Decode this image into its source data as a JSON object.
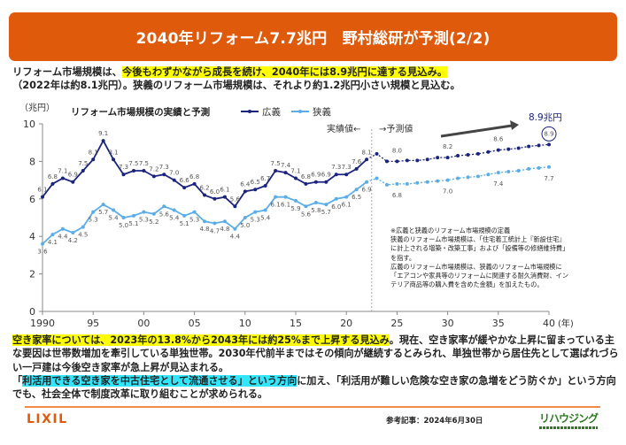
{
  "header": {
    "title": "2040年リフォーム7.7兆円　野村総研が予測(2/2)"
  },
  "lead": {
    "line1_pre": "リフォーム市場規模は、",
    "line1_highlight": "今後もわずかながら成長を続け、2040年には8.9兆円に達する見込み。",
    "line2": "（2022年は約8.1兆円）。狭義のリフォーム市場規模は、それより約1.2兆円小さい規模と見込む。"
  },
  "colors": {
    "brand": "#e05a0c",
    "broad": "#1a237e",
    "narrow": "#5aade8",
    "highlight_yellow": "#ffff00",
    "highlight_cyan": "#33e6ff",
    "logo_green": "#2b7a1f"
  },
  "chart_data": {
    "type": "line",
    "title": "リフォーム市場規模の実績と予測",
    "ylabel": "（兆円）",
    "xlabel": "(年)",
    "ylim": [
      0,
      10
    ],
    "yticks": [
      0,
      2,
      4,
      6,
      8,
      10
    ],
    "xlim": [
      1990,
      2040
    ],
    "xticks": [
      1990,
      1995,
      2000,
      2005,
      2010,
      2015,
      2020,
      2025,
      2030,
      2035,
      2040
    ],
    "xtick_labels": [
      "1990",
      "95",
      "00",
      "05",
      "10",
      "15",
      "20",
      "25",
      "30",
      "35",
      "40"
    ],
    "grid": false,
    "legend": "top-center",
    "divider_year": 2022.5,
    "actual_label": "実績値←",
    "forecast_label": "→予測値",
    "callout": "8.9兆円",
    "series": [
      {
        "name": "広義",
        "color": "#1a237e",
        "actual_x": [
          1990,
          1991,
          1992,
          1993,
          1994,
          1995,
          1996,
          1997,
          1998,
          1999,
          2000,
          2001,
          2002,
          2003,
          2004,
          2005,
          2006,
          2007,
          2008,
          2009,
          2010,
          2011,
          2012,
          2013,
          2014,
          2015,
          2016,
          2017,
          2018,
          2019,
          2020,
          2021,
          2022
        ],
        "actual_y": [
          6.1,
          6.8,
          7.1,
          6.9,
          7.5,
          8.1,
          9.1,
          8.1,
          7.3,
          7.5,
          7.5,
          7.2,
          7.3,
          7.0,
          6.6,
          6.8,
          6.2,
          6.0,
          6.1,
          5.6,
          6.4,
          6.5,
          6.7,
          7.5,
          7.4,
          7.1,
          6.8,
          6.9,
          6.9,
          7.3,
          7.3,
          7.6,
          8.1
        ],
        "forecast_x": [
          2023,
          2024,
          2025,
          2026,
          2027,
          2028,
          2029,
          2030,
          2031,
          2032,
          2033,
          2034,
          2035,
          2036,
          2037,
          2038,
          2039,
          2040
        ],
        "forecast_y": [
          8.4,
          8.0,
          8.0,
          8.05,
          8.05,
          8.1,
          8.2,
          8.2,
          8.3,
          8.35,
          8.4,
          8.5,
          8.6,
          8.65,
          8.7,
          8.8,
          8.85,
          8.9
        ],
        "labeled_forecast": {
          "2025": "8.0",
          "2030": "8.2",
          "2035": "8.6",
          "2040": "8.9"
        }
      },
      {
        "name": "狭義",
        "color": "#5aade8",
        "actual_x": [
          1990,
          1991,
          1992,
          1993,
          1994,
          1995,
          1996,
          1997,
          1998,
          1999,
          2000,
          2001,
          2002,
          2003,
          2004,
          2005,
          2006,
          2007,
          2008,
          2009,
          2010,
          2011,
          2012,
          2013,
          2014,
          2015,
          2016,
          2017,
          2018,
          2019,
          2020,
          2021,
          2022
        ],
        "actual_y": [
          3.6,
          4.1,
          4.4,
          4.2,
          4.5,
          5.3,
          5.7,
          5.4,
          5.0,
          5.1,
          5.3,
          5.2,
          5.6,
          5.4,
          5.1,
          5.3,
          4.8,
          4.7,
          4.8,
          4.4,
          5.0,
          5.3,
          5.4,
          6.1,
          6.1,
          5.9,
          5.6,
          5.8,
          5.7,
          6.0,
          6.1,
          6.5,
          6.9
        ],
        "forecast_x": [
          2023,
          2024,
          2025,
          2026,
          2027,
          2028,
          2029,
          2030,
          2031,
          2032,
          2033,
          2034,
          2035,
          2036,
          2037,
          2038,
          2039,
          2040
        ],
        "forecast_y": [
          7.1,
          6.75,
          6.8,
          6.8,
          6.85,
          6.9,
          6.95,
          7.0,
          7.1,
          7.15,
          7.2,
          7.3,
          7.4,
          7.45,
          7.5,
          7.6,
          7.65,
          7.7
        ],
        "labeled_forecast": {
          "2025": "6.8",
          "2030": "7.0",
          "2035": "7.4",
          "2040": "7.7"
        }
      }
    ]
  },
  "note": {
    "lines": [
      "※広義と狭義のリフォーム市場規模の定義",
      "狭義のリフォーム市場規模は、「住宅着工統計上『新設住宅』",
      "に計上される増築・改築工事」および「設備等の修繕維持費」",
      "を指す。",
      "広義のリフォーム市場規模は、狭義のリフォーム市場規模に",
      "「エアコンや家具等のリフォームに関連する耐久消費財、イン",
      "テリア商品等の購入費を含めた金額」を加えたもの。"
    ]
  },
  "body": {
    "p1_highlight": "空き家率については、2023年の13.8%から2043年には約25%まで上昇する見込み",
    "p1_rest": "。現在、空き家率が緩やかな上昇に留まっている主な要因は世帯数増加を牽引している単独世帯。2030年代前半まではその傾向が継続するとみられ、単独世帯から居住先として選ばれづらい一戸建は今後空き家率が急上昇が見込まれる。",
    "p2_open": "「",
    "p2_highlight": "利活用できる空き家を中古住宅として流通させる」という方向",
    "p2_rest": "に加え、「利活用が難しい危険な空き家の急増をどう防ぐか」という方向でも、社会全体で制度改革に取り組むことが求められる。"
  },
  "footer": {
    "brand_logo": "LIXIL",
    "reference": "参考記事：2024年6月30日",
    "partner_logo": "リハウジング"
  }
}
